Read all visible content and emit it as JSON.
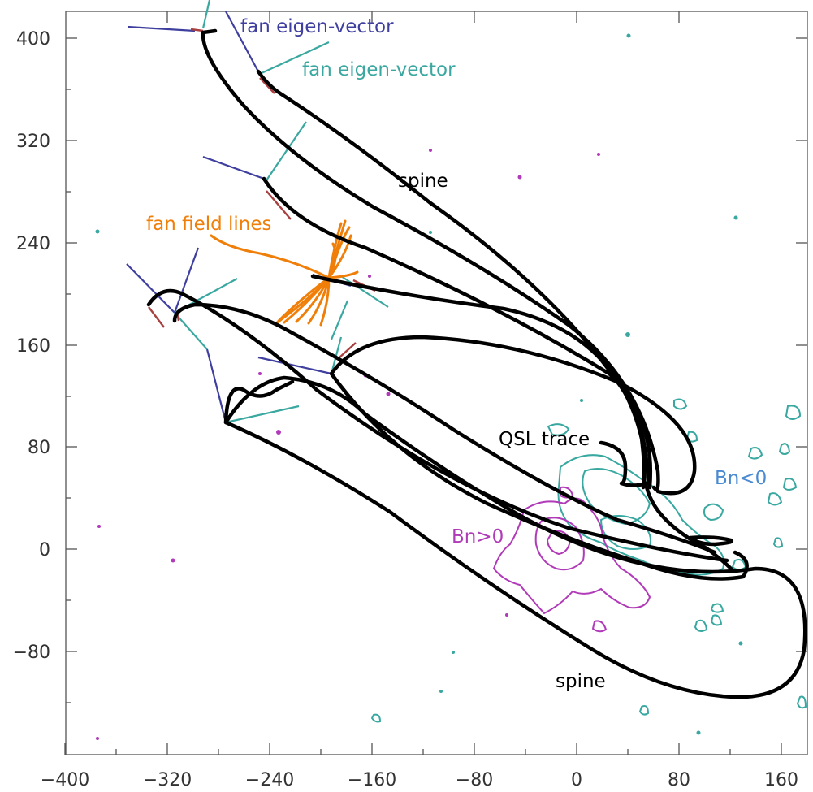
{
  "chart_data": {
    "type": "diagram",
    "x_ticks": [
      "−400",
      "−320",
      "−240",
      "−160",
      "−80",
      "0",
      "80",
      "160"
    ],
    "y_ticks": [
      "400",
      "320",
      "240",
      "160",
      "80",
      "0",
      "−80"
    ],
    "xlim": [
      -400,
      180
    ],
    "ylim": [
      -160,
      420
    ],
    "annotations": {
      "fan_eigen_vector_1": "fan eigen-vector",
      "fan_eigen_vector_2": "fan eigen-vector",
      "spine_top": "spine",
      "fan_field_lines": "fan field lines",
      "qsl_trace": "QSL trace",
      "bn_neg": "Bn<0",
      "bn_pos": "Bn>0",
      "spine_bottom": "spine"
    },
    "colors": {
      "spine": "#000000",
      "fan_eigen_vector_a": "#3f3f9f",
      "fan_eigen_vector_b": "#3aa8a0",
      "fan_field_lines": "#f07f0a",
      "bn_neg_contour": "#38a8a0",
      "bn_pos_contour": "#b03ab8",
      "eigen_short": "#a84040"
    }
  }
}
